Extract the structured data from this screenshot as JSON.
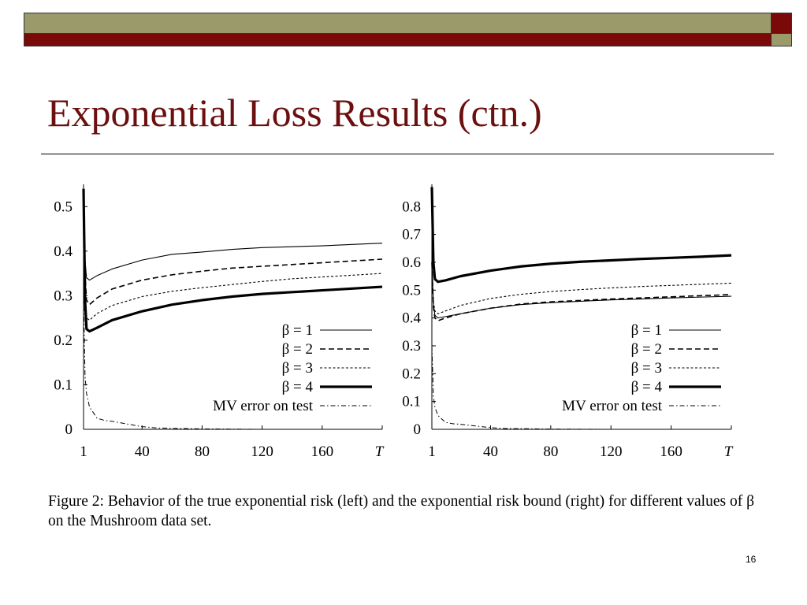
{
  "colors": {
    "olive": "#9b9a6a",
    "maroon": "#7a0a0a",
    "title_color": "#6b0f0f"
  },
  "slide": {
    "title": "Exponential Loss Results (ctn.)",
    "caption": "Figure 2:  Behavior of the true exponential risk (left) and the exponential risk bound (right) for different values of β on the Mushroom data set.",
    "slide_number": "16"
  },
  "chart_data": [
    {
      "type": "line",
      "title": "",
      "xlabel": "T",
      "ylabel": "",
      "xlim": [
        1,
        200
      ],
      "ylim": [
        0,
        0.55
      ],
      "x_ticks": [
        1,
        40,
        80,
        120,
        160
      ],
      "x_tick_labels": [
        "1",
        "40",
        "80",
        "120",
        "160"
      ],
      "x_end_label": "T",
      "y_ticks": [
        0,
        0.1,
        0.2,
        0.3,
        0.4,
        0.5
      ],
      "y_tick_labels": [
        "0",
        "0.1",
        "0.2",
        "0.3",
        "0.4",
        "0.5"
      ],
      "grid": false,
      "legend_position": "bottom-right",
      "series": [
        {
          "name": "β = 1",
          "style": "solid-thin",
          "x": [
            1,
            2,
            3,
            5,
            10,
            20,
            40,
            60,
            80,
            100,
            120,
            140,
            160,
            180,
            200
          ],
          "y": [
            0.53,
            0.38,
            0.34,
            0.335,
            0.345,
            0.36,
            0.38,
            0.393,
            0.398,
            0.404,
            0.408,
            0.41,
            0.412,
            0.415,
            0.418
          ]
        },
        {
          "name": "β = 2",
          "style": "dashed",
          "x": [
            1,
            2,
            3,
            5,
            10,
            20,
            40,
            60,
            80,
            100,
            120,
            140,
            160,
            180,
            200
          ],
          "y": [
            0.53,
            0.35,
            0.29,
            0.28,
            0.295,
            0.315,
            0.335,
            0.347,
            0.355,
            0.362,
            0.366,
            0.37,
            0.374,
            0.378,
            0.382
          ]
        },
        {
          "name": "β = 3",
          "style": "dotted",
          "x": [
            1,
            2,
            3,
            5,
            10,
            20,
            40,
            60,
            80,
            100,
            120,
            140,
            160,
            180,
            200
          ],
          "y": [
            0.53,
            0.31,
            0.25,
            0.245,
            0.26,
            0.278,
            0.298,
            0.31,
            0.318,
            0.325,
            0.332,
            0.338,
            0.342,
            0.346,
            0.35
          ]
        },
        {
          "name": "β = 4",
          "style": "solid-thick",
          "x": [
            1,
            2,
            3,
            5,
            10,
            20,
            40,
            60,
            80,
            100,
            120,
            140,
            160,
            180,
            200
          ],
          "y": [
            0.54,
            0.29,
            0.225,
            0.22,
            0.228,
            0.245,
            0.265,
            0.28,
            0.29,
            0.298,
            0.304,
            0.308,
            0.312,
            0.316,
            0.32
          ]
        },
        {
          "name": "MV error on test",
          "style": "dash-dot",
          "x": [
            1,
            2,
            3,
            5,
            8,
            10,
            15,
            20,
            30,
            40,
            50,
            80,
            120,
            160,
            200
          ],
          "y": [
            0.3,
            0.12,
            0.08,
            0.05,
            0.035,
            0.025,
            0.02,
            0.018,
            0.012,
            0.006,
            0.003,
            0.001,
            0.0,
            0.0,
            0.0
          ]
        }
      ]
    },
    {
      "type": "line",
      "title": "",
      "xlabel": "T",
      "ylabel": "",
      "xlim": [
        1,
        200
      ],
      "ylim": [
        0,
        0.88
      ],
      "x_ticks": [
        1,
        40,
        80,
        120,
        160
      ],
      "x_tick_labels": [
        "1",
        "40",
        "80",
        "120",
        "160"
      ],
      "x_end_label": "T",
      "y_ticks": [
        0,
        0.1,
        0.2,
        0.3,
        0.4,
        0.5,
        0.6,
        0.7,
        0.8
      ],
      "y_tick_labels": [
        "0",
        "0.1",
        "0.2",
        "0.3",
        "0.4",
        "0.5",
        "0.6",
        "0.7",
        "0.8"
      ],
      "grid": false,
      "legend_position": "bottom-right",
      "series": [
        {
          "name": "β = 1",
          "style": "solid-thin",
          "x": [
            1,
            2,
            3,
            5,
            10,
            20,
            40,
            60,
            80,
            100,
            120,
            140,
            160,
            180,
            200
          ],
          "y": [
            0.6,
            0.45,
            0.41,
            0.4,
            0.405,
            0.415,
            0.435,
            0.448,
            0.455,
            0.46,
            0.465,
            0.468,
            0.472,
            0.475,
            0.478
          ]
        },
        {
          "name": "β = 2",
          "style": "dashed",
          "x": [
            1,
            2,
            3,
            5,
            10,
            20,
            40,
            60,
            80,
            100,
            120,
            140,
            160,
            180,
            200
          ],
          "y": [
            0.6,
            0.44,
            0.4,
            0.39,
            0.4,
            0.415,
            0.435,
            0.45,
            0.458,
            0.463,
            0.468,
            0.472,
            0.476,
            0.48,
            0.484
          ]
        },
        {
          "name": "β = 3",
          "style": "dotted",
          "x": [
            1,
            2,
            3,
            5,
            10,
            20,
            40,
            60,
            80,
            100,
            120,
            140,
            160,
            180,
            200
          ],
          "y": [
            0.6,
            0.46,
            0.425,
            0.415,
            0.425,
            0.445,
            0.47,
            0.485,
            0.495,
            0.502,
            0.508,
            0.513,
            0.517,
            0.521,
            0.525
          ]
        },
        {
          "name": "β = 4",
          "style": "solid-thick",
          "x": [
            1,
            2,
            3,
            5,
            10,
            20,
            40,
            60,
            80,
            100,
            120,
            140,
            160,
            180,
            200
          ],
          "y": [
            0.87,
            0.6,
            0.54,
            0.53,
            0.535,
            0.55,
            0.57,
            0.585,
            0.595,
            0.602,
            0.607,
            0.612,
            0.616,
            0.62,
            0.625
          ]
        },
        {
          "name": "MV error on test",
          "style": "dash-dot",
          "x": [
            1,
            2,
            3,
            5,
            8,
            10,
            15,
            20,
            30,
            40,
            50,
            80,
            120,
            160,
            200
          ],
          "y": [
            0.3,
            0.12,
            0.08,
            0.05,
            0.035,
            0.025,
            0.02,
            0.018,
            0.012,
            0.006,
            0.003,
            0.001,
            0.0,
            0.0,
            0.0
          ]
        }
      ]
    }
  ]
}
